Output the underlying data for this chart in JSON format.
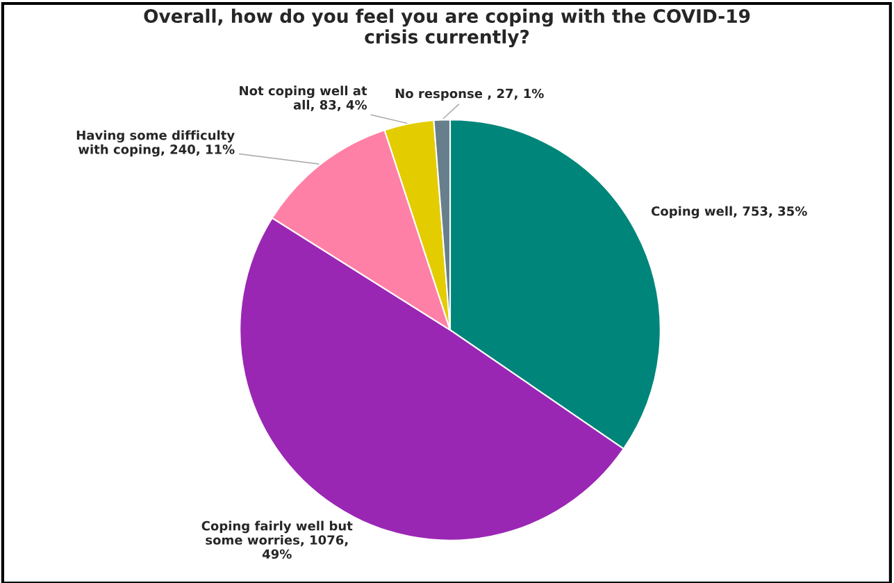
{
  "chart_data": {
    "type": "pie",
    "title": "Overall, how do you feel you are coping with the COVID-19\ncrisis currently?",
    "categories": [
      "Coping well",
      "Coping fairly well but some worries",
      "Having some difficulty with coping",
      "Not coping well at all",
      "No response "
    ],
    "values": [
      753,
      1076,
      240,
      83,
      27
    ],
    "value_labels": [
      ", 753, 35%",
      ", 1076, 49%",
      ", 240, 11%",
      ", 83, 4%",
      ", 27, 1%"
    ],
    "colors": [
      "#00857a",
      "#9a27b4",
      "#ff80a6",
      "#e3cc00",
      "#677f8c"
    ]
  }
}
